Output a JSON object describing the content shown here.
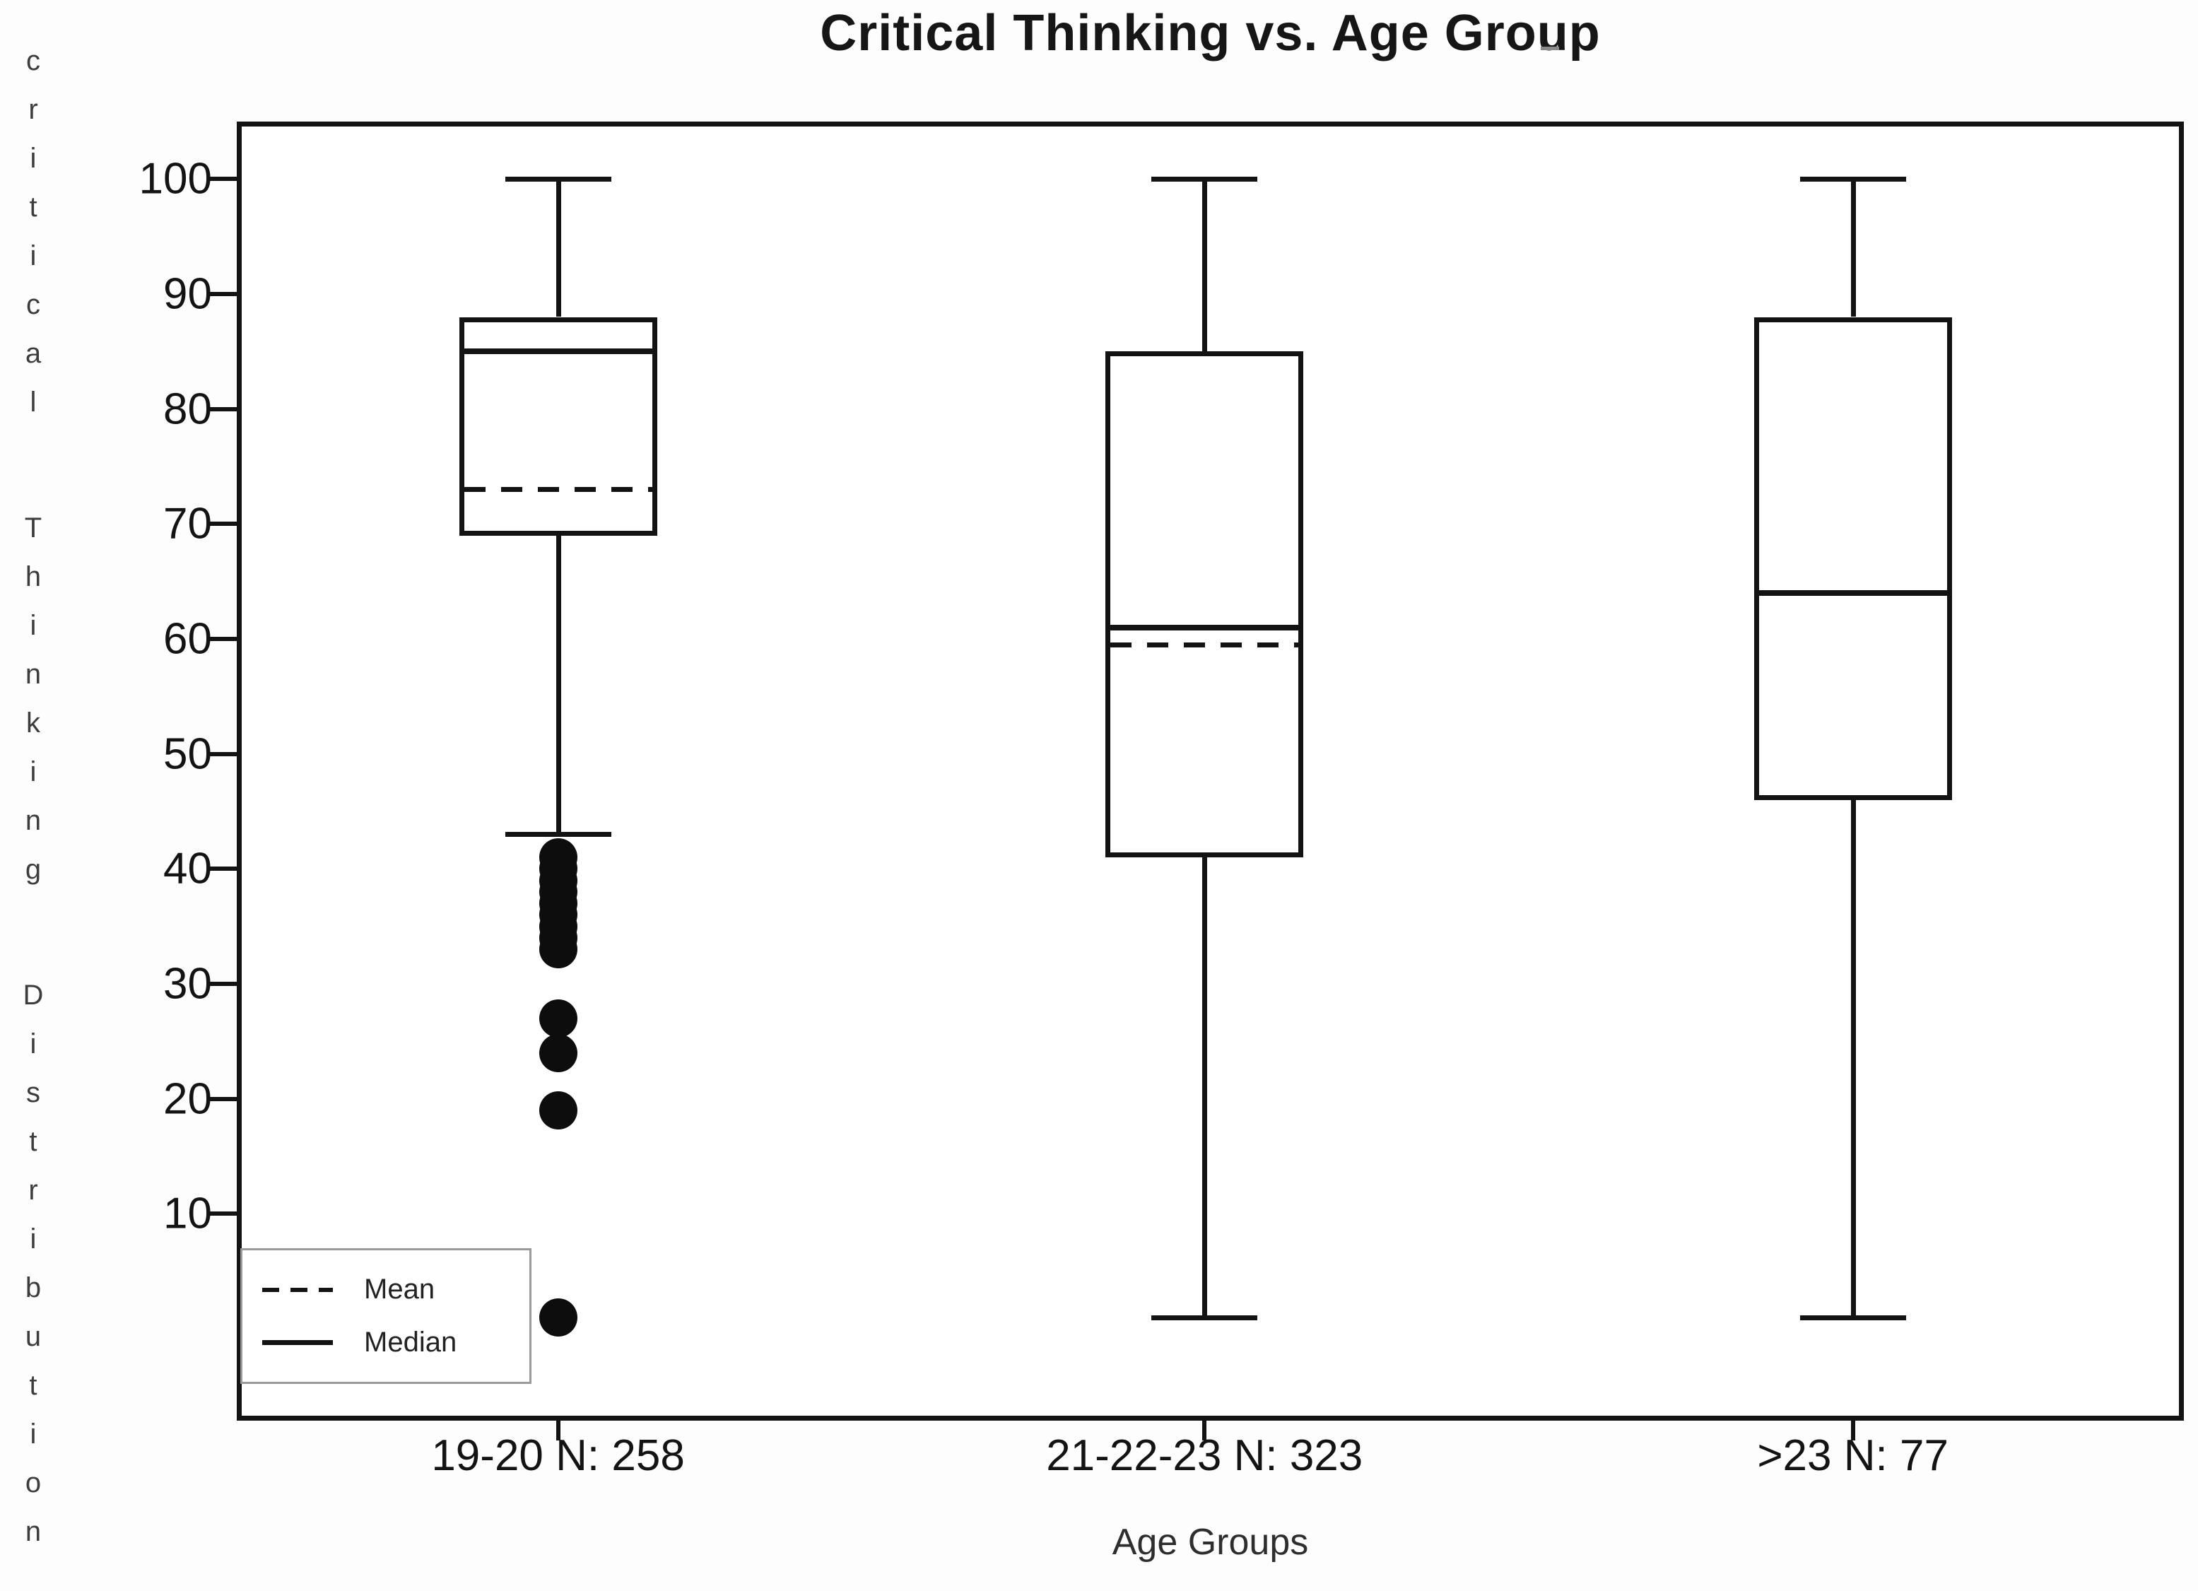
{
  "chart_data": {
    "type": "boxplot",
    "title": "Critical Thinking vs. Age Group",
    "xlabel": "Age Groups",
    "ylabel": "critical Thinking Distribution",
    "ylabel_words": [
      "critical",
      "Thinking",
      "Distribution"
    ],
    "ylim": [
      -8,
      105
    ],
    "yticks": [
      100,
      90,
      80,
      70,
      60,
      50,
      40,
      30,
      20,
      10
    ],
    "grid": false,
    "legend": {
      "position": "lower-left",
      "entries": [
        {
          "label": "Mean",
          "style": "dashed"
        },
        {
          "label": "Median",
          "style": "solid"
        }
      ]
    },
    "categories": [
      "19-20 N: 258",
      "21-22-23 N: 323",
      ">23 N: 77"
    ],
    "groups": [
      {
        "label": "19-20 N: 258",
        "sample_size": 258,
        "whisker_high": 100,
        "q3": 88,
        "median": 85,
        "mean": 73,
        "q1": 69,
        "whisker_low": 43,
        "outliers": [
          41,
          40,
          39,
          38,
          37,
          36,
          35,
          34,
          33,
          27,
          24,
          19,
          1
        ]
      },
      {
        "label": "21-22-23 N: 323",
        "sample_size": 323,
        "whisker_high": 100,
        "q3": 85,
        "median": 61,
        "mean": 59.5,
        "q1": 41,
        "whisker_low": 1,
        "outliers": []
      },
      {
        "label": ">23 N: 77",
        "sample_size": 77,
        "whisker_high": 100,
        "q3": 88,
        "median": 64,
        "mean": 64,
        "q1": 46,
        "whisker_low": 1,
        "outliers": []
      }
    ]
  },
  "colors": {
    "line": "#131313",
    "background": "#fdfdfd",
    "plot_background": "#ffffff",
    "muted_text": "#3d3d3d"
  }
}
